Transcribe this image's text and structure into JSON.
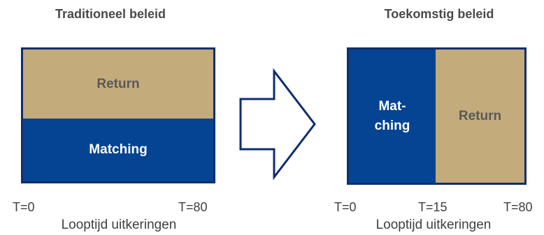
{
  "left": {
    "title": "Traditioneel beleid",
    "top_segment": "Return",
    "bottom_segment": "Matching",
    "ticks": [
      "T=0",
      "T=80"
    ],
    "axis_label": "Looptijd uitkeringen"
  },
  "right": {
    "title": "Toekomstig beleid",
    "left_segment_line1": "Mat-",
    "left_segment_line2": "ching",
    "right_segment": "Return",
    "ticks": [
      "T=0",
      "T=15",
      "T=80"
    ],
    "axis_label": "Looptijd uitkeringen"
  },
  "colors": {
    "matching": "#044493",
    "return": "#c3ab7b",
    "border": "#0e2e6e"
  },
  "icons": {
    "transition": "right-arrow-outline-icon"
  }
}
